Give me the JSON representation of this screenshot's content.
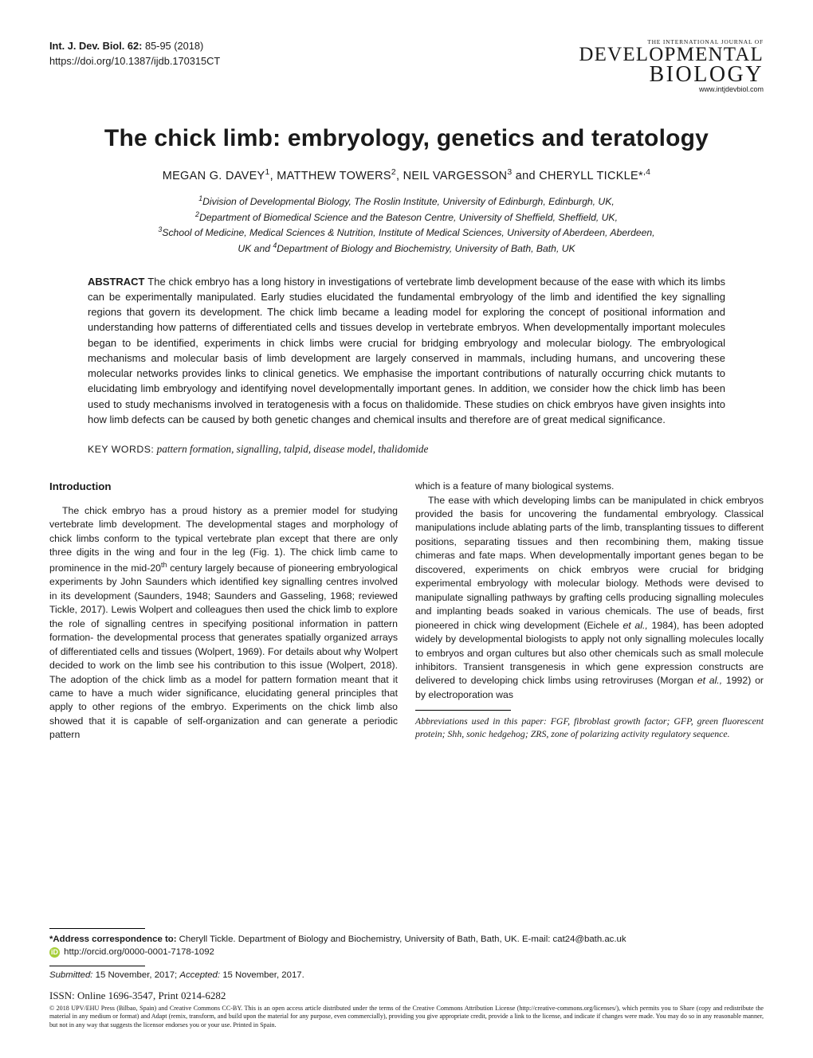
{
  "header": {
    "journal_ref": "Int. J. Dev. Biol. 62:",
    "pages": " 85-95 (2018)",
    "doi": "https://doi.org/10.1387/ijdb.170315CT",
    "logo_top": "THE INTERNATIONAL JOURNAL OF",
    "logo_dev": "DEVELOPMENTAL",
    "logo_bio": "BIOLOGY",
    "logo_url": "www.intjdevbiol.com"
  },
  "title": "The chick limb: embryology, genetics and teratology",
  "authors_html": "MEGAN G. DAVEY<sup>1</sup>, MATTHEW TOWERS<sup>2</sup>, NEIL VARGESSON<sup>3</sup> and CHERYLL TICKLE*<sup>,4</sup>",
  "affiliations_html": "<sup>1</sup>Division of Developmental Biology, The Roslin Institute, University of Edinburgh, Edinburgh, UK,<br><sup>2</sup>Department of Biomedical Science and the Bateson Centre, University of Sheffield, Sheffield, UK,<br><sup>3</sup>School of Medicine, Medical Sciences & Nutrition, Institute of Medical Sciences, University of Aberdeen, Aberdeen,<br>UK and <sup>4</sup>Department of Biology and Biochemistry, University of Bath, Bath, UK",
  "abstract_label": "ABSTRACT ",
  "abstract_text": "The chick embryo has a long history in investigations of vertebrate limb development because of the ease with which its limbs can be experimentally manipulated. Early studies elucidated the fundamental embryology of the limb and identified the key signalling regions that govern its development. The chick limb became a leading model for exploring the concept of positional information and understanding how patterns of differentiated cells and tissues develop in vertebrate embryos. When developmentally important molecules began to be identified, experiments in chick limbs were crucial for bridging embryology and molecular biology. The embryological mechanisms and molecular basis of limb development are largely conserved in mammals, including humans, and uncovering these molecular networks provides links to clinical genetics. We emphasise the important contributions of naturally occurring chick mutants to elucidating limb embryology and identifying novel developmentally important genes. In addition, we consider how the chick limb has been used to study mechanisms involved in teratogenesis with a focus on thalidomide. These studies on chick embryos have given insights into how limb defects can be caused by both genetic changes and chemical insults and therefore are of great medical significance.",
  "keywords_label": "KEY WORDS:",
  "keywords_value": " pattern formation, signalling, talpid, disease model, thalidomide",
  "section_intro": "Introduction",
  "col_left_html": "The chick embryo has a proud history as a premier model for studying vertebrate limb development. The developmental stages and morphology of chick limbs conform to the typical vertebrate plan except that there are only three digits in the wing and four in the leg (Fig. 1). The chick limb came to prominence in the mid-20<sup>th</sup> century largely because of pioneering embryological experiments by John Saunders which identified key signalling centres involved in its development (Saunders, 1948; Saunders and Gasseling, 1968; reviewed Tickle, 2017). Lewis Wolpert and colleagues then used the chick limb to explore the role of signalling centres in specifying positional information in pattern formation- the developmental process that generates spatially organized arrays of differentiated cells and tissues (Wolpert, 1969). For details about why Wolpert decided to work on the limb see his contribution to this issue (Wolpert, 2018). The adoption of the chick limb as a model for pattern formation meant that it came to have a much wider significance, elucidating general principles that apply to other regions of the embryo. Experiments on the chick limb also showed that it is capable of self-organization and can generate a periodic pattern",
  "col_right_p1": "which is a feature of many biological systems.",
  "col_right_p2_html": "The ease with which developing limbs can be manipulated in chick embryos provided the basis for uncovering the fundamental embryology. Classical manipulations include ablating parts of the limb, transplanting tissues to different positions, separating tissues and then recombining them, making tissue chimeras and fate maps. When developmentally important genes began to be discovered, experiments on chick embryos were crucial for bridging experimental embryology with molecular biology. Methods were devised to manipulate signalling pathways by grafting cells producing signalling molecules and implanting beads soaked in various chemicals. The use of beads, first pioneered in chick wing development (Eichele <i>et al.,</i> 1984), has been adopted widely by developmental biologists to apply not only signalling molecules locally to embryos and organ cultures but also other chemicals such as small molecule inhibitors. Transient transgenesis in which gene expression constructs are delivered to developing chick limbs using retroviruses (Morgan <i>et al.,</i> 1992) or by electroporation was",
  "abbrev_label": "Abbreviations used in this paper:",
  "abbrev_text": " FGF, fibroblast growth factor; GFP, green fluorescent protein; Shh, sonic hedgehog; ZRS, zone of polarizing activity regulatory sequence.",
  "correspondence_label": "*Address correspondence to:",
  "correspondence_text": "  Cheryll Tickle. Department of Biology and Biochemistry, University of Bath, Bath, UK. E-mail: cat24@bath.ac.uk",
  "orcid_glyph": "iD",
  "orcid": " http://orcid.org/0000-0001-7178-1092",
  "submitted_label": "Submitted:",
  "submitted_date": " 15 November, 2017; ",
  "accepted_label": "Accepted:",
  "accepted_date": " 15 November, 2017.",
  "issn": "ISSN: Online 1696-3547, Print 0214-6282",
  "copyright": "© 2018 UPV/EHU Press (Bilbao, Spain) and Creative Commons CC-BY. This is an open access article distributed under the terms of the Creative Commons Attribution License (http://creative-commons.org/licenses/), which permits you to Share (copy and redistribute the material in any medium or format) and Adapt (remix, transform, and build upon the material for any purpose, even commercially), providing you give appropriate credit, provide a link to the license, and indicate if changes were made. You may do so in any reasonable manner, but not in any way that suggests the licensor endorses you or your use. Printed in Spain."
}
